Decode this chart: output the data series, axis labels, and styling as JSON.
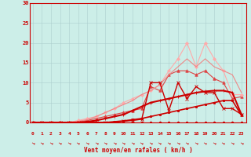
{
  "xlabel": "Vent moyen/en rafales ( km/h )",
  "xlim": [
    -0.3,
    23.5
  ],
  "ylim": [
    0,
    30
  ],
  "xticks": [
    0,
    1,
    2,
    3,
    4,
    5,
    6,
    7,
    8,
    9,
    10,
    11,
    12,
    13,
    14,
    15,
    16,
    17,
    18,
    19,
    20,
    21,
    22,
    23
  ],
  "yticks": [
    0,
    5,
    10,
    15,
    20,
    25,
    30
  ],
  "bg_color": "#cceee8",
  "grid_color": "#aacccc",
  "series": [
    {
      "x": [
        0,
        1,
        2,
        3,
        4,
        5,
        6,
        7,
        8,
        9,
        10,
        11,
        12,
        13,
        14,
        15,
        16,
        17,
        18,
        19,
        20,
        21,
        22,
        23
      ],
      "y": [
        0,
        0,
        0,
        0,
        0,
        0,
        0,
        0,
        0,
        0,
        0,
        0,
        0,
        0,
        0,
        0,
        0,
        0,
        0,
        0,
        0,
        0,
        0,
        0
      ],
      "color": "#cc0000",
      "linewidth": 0.7,
      "marker": "s",
      "markersize": 1.5,
      "linestyle": "-",
      "zorder": 3
    },
    {
      "x": [
        0,
        1,
        2,
        3,
        4,
        5,
        6,
        7,
        8,
        9,
        10,
        11,
        12,
        13,
        14,
        15,
        16,
        17,
        18,
        19,
        20,
        21,
        22,
        23
      ],
      "y": [
        0,
        0,
        0,
        0,
        0,
        0,
        0,
        0,
        0,
        0,
        0,
        0,
        0,
        0,
        0,
        0,
        0,
        0,
        0,
        0,
        0,
        0,
        0,
        0
      ],
      "color": "#cc0000",
      "linewidth": 0.8,
      "marker": "D",
      "markersize": 1.5,
      "linestyle": "-",
      "zorder": 3
    },
    {
      "x": [
        0,
        1,
        2,
        3,
        4,
        5,
        6,
        7,
        8,
        9,
        10,
        11,
        12,
        13,
        14,
        15,
        16,
        17,
        18,
        19,
        20,
        21,
        22,
        23
      ],
      "y": [
        0,
        0,
        0,
        0,
        0,
        0,
        0,
        0,
        0,
        0.2,
        0.4,
        0.7,
        1,
        1.5,
        2,
        2.5,
        3,
        3.5,
        4,
        4.5,
        5,
        5.5,
        5.5,
        1.8
      ],
      "color": "#cc0000",
      "linewidth": 1.2,
      "marker": "s",
      "markersize": 1.8,
      "linestyle": "-",
      "zorder": 3
    },
    {
      "x": [
        0,
        1,
        2,
        3,
        4,
        5,
        6,
        7,
        8,
        9,
        10,
        11,
        12,
        13,
        14,
        15,
        16,
        17,
        18,
        19,
        20,
        21,
        22,
        23
      ],
      "y": [
        0,
        0,
        0,
        0,
        0,
        0,
        0,
        0,
        0,
        0,
        0.3,
        0.5,
        0.8,
        10,
        10,
        3,
        10,
        6,
        9,
        7.5,
        7.5,
        3.5,
        3.5,
        2
      ],
      "color": "#cc0000",
      "linewidth": 1.0,
      "marker": "x",
      "markersize": 3,
      "linestyle": "-",
      "zorder": 3
    },
    {
      "x": [
        0,
        1,
        2,
        3,
        4,
        5,
        6,
        7,
        8,
        9,
        10,
        11,
        12,
        13,
        14,
        15,
        16,
        17,
        18,
        19,
        20,
        21,
        22,
        23
      ],
      "y": [
        0,
        0,
        0,
        0,
        0,
        0.2,
        0.5,
        1,
        1.5,
        2,
        2.5,
        3,
        3.5,
        9,
        8,
        12,
        13,
        13,
        12,
        13,
        11,
        10,
        6,
        6.5
      ],
      "color": "#dd4444",
      "linewidth": 0.8,
      "marker": "^",
      "markersize": 2.5,
      "linestyle": "-",
      "zorder": 2
    },
    {
      "x": [
        0,
        1,
        2,
        3,
        4,
        5,
        6,
        7,
        8,
        9,
        10,
        11,
        12,
        13,
        14,
        15,
        16,
        17,
        18,
        19,
        20,
        21,
        22,
        23
      ],
      "y": [
        0,
        0,
        0,
        0,
        0,
        0.5,
        1,
        1.5,
        2.5,
        3.5,
        5,
        6,
        7,
        8,
        9.5,
        13,
        16,
        20,
        14,
        20,
        16,
        13,
        7,
        7
      ],
      "color": "#ffaaaa",
      "linewidth": 0.8,
      "marker": "D",
      "markersize": 2.0,
      "linestyle": "-",
      "zorder": 2
    },
    {
      "x": [
        0,
        1,
        2,
        3,
        4,
        5,
        6,
        7,
        8,
        9,
        10,
        11,
        12,
        13,
        14,
        15,
        16,
        17,
        18,
        19,
        20,
        21,
        22,
        23
      ],
      "y": [
        0,
        0,
        0,
        0,
        0.1,
        0.3,
        0.7,
        1.5,
        2.5,
        3.5,
        4.5,
        5.5,
        7,
        8,
        9.5,
        12,
        14,
        16,
        14,
        16,
        14,
        13,
        12,
        7.5
      ],
      "color": "#ee8888",
      "linewidth": 0.8,
      "marker": null,
      "markersize": 0,
      "linestyle": "-",
      "zorder": 2
    },
    {
      "x": [
        0,
        1,
        2,
        3,
        4,
        5,
        6,
        7,
        8,
        9,
        10,
        11,
        12,
        13,
        14,
        15,
        16,
        17,
        18,
        19,
        20,
        21,
        22,
        23
      ],
      "y": [
        0,
        0,
        0,
        0,
        0,
        0,
        0.2,
        0.5,
        1,
        1.5,
        2,
        3,
        4,
        5,
        5.5,
        6,
        6.5,
        7,
        7.5,
        7.8,
        8,
        8,
        7.5,
        2
      ],
      "color": "#cc0000",
      "linewidth": 1.5,
      "marker": "+",
      "markersize": 3.5,
      "linestyle": "-",
      "zorder": 4
    }
  ],
  "arrow_color": "#cc0000",
  "arrow_chars": "→"
}
